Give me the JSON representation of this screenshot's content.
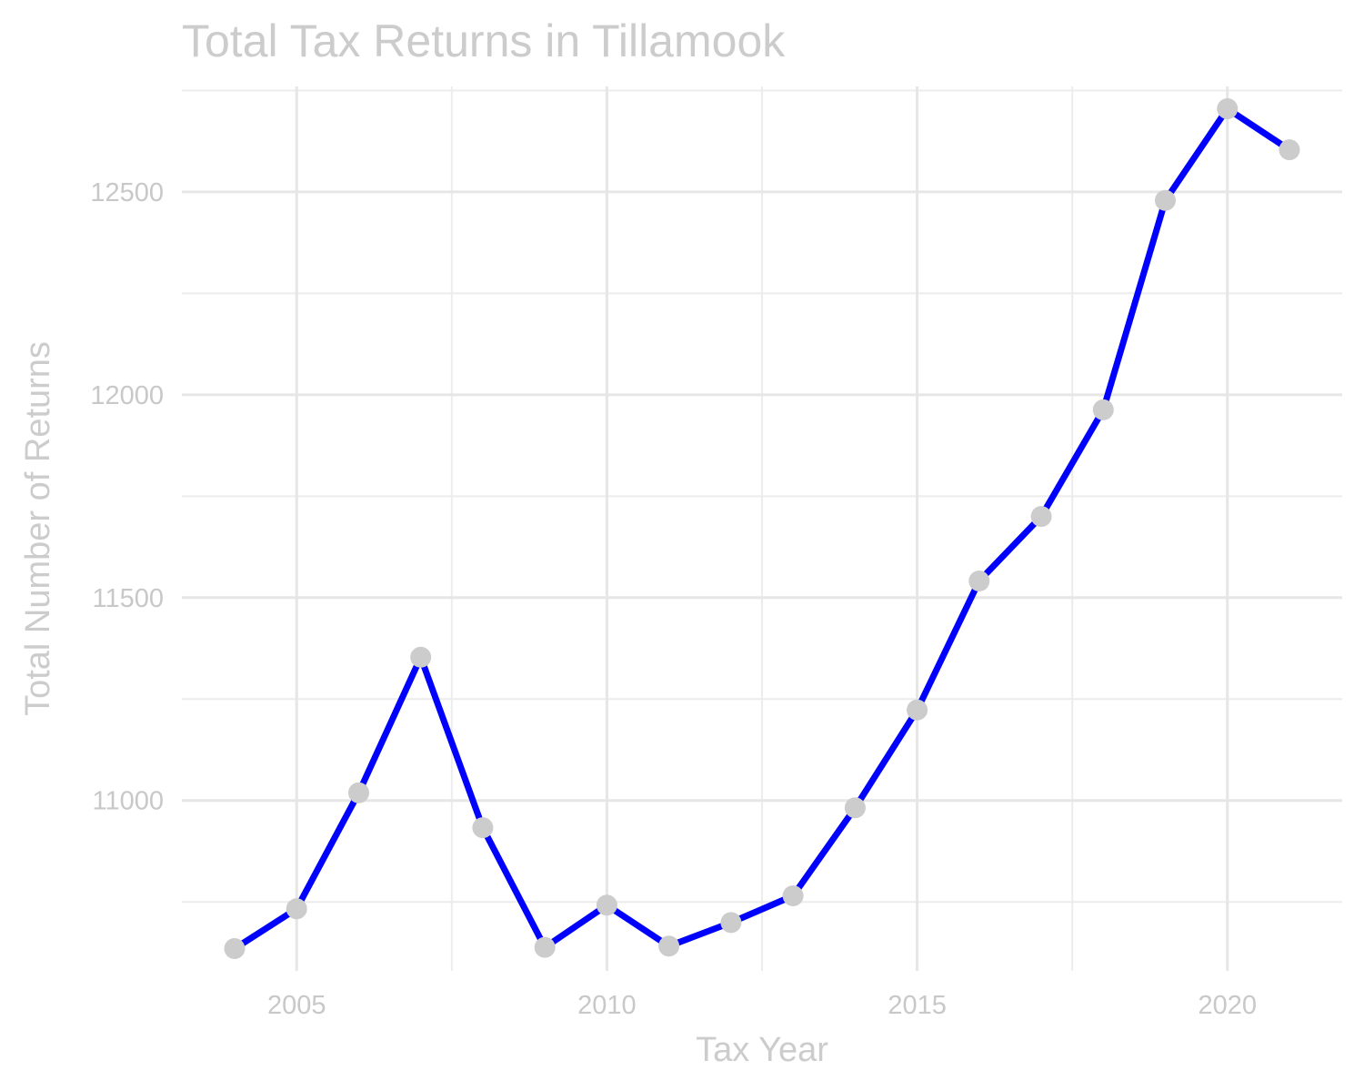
{
  "chart_data": {
    "type": "line",
    "title": "Total Tax Returns in Tillamook",
    "xlabel": "Tax Year",
    "ylabel": "Total Number of Returns",
    "x": [
      2004,
      2005,
      2006,
      2007,
      2008,
      2009,
      2010,
      2011,
      2012,
      2013,
      2014,
      2015,
      2016,
      2017,
      2018,
      2019,
      2020,
      2021
    ],
    "series": [
      {
        "values": [
          10635,
          10733,
          11019,
          11353,
          10933,
          10638,
          10742,
          10641,
          10699,
          10765,
          10982,
          11223,
          11541,
          11700,
          11963,
          12479,
          12705,
          12604
        ]
      }
    ],
    "x_ticks": [
      "2005",
      "2010",
      "2015",
      "2020"
    ],
    "y_ticks": [
      "11000",
      "11500",
      "12000",
      "12500"
    ],
    "xlim": [
      2003.15,
      2021.85
    ],
    "ylim": [
      10580,
      12760
    ],
    "grid": true,
    "legend": "none",
    "line_color": "#0000ff",
    "point_color": "#cccccc"
  }
}
